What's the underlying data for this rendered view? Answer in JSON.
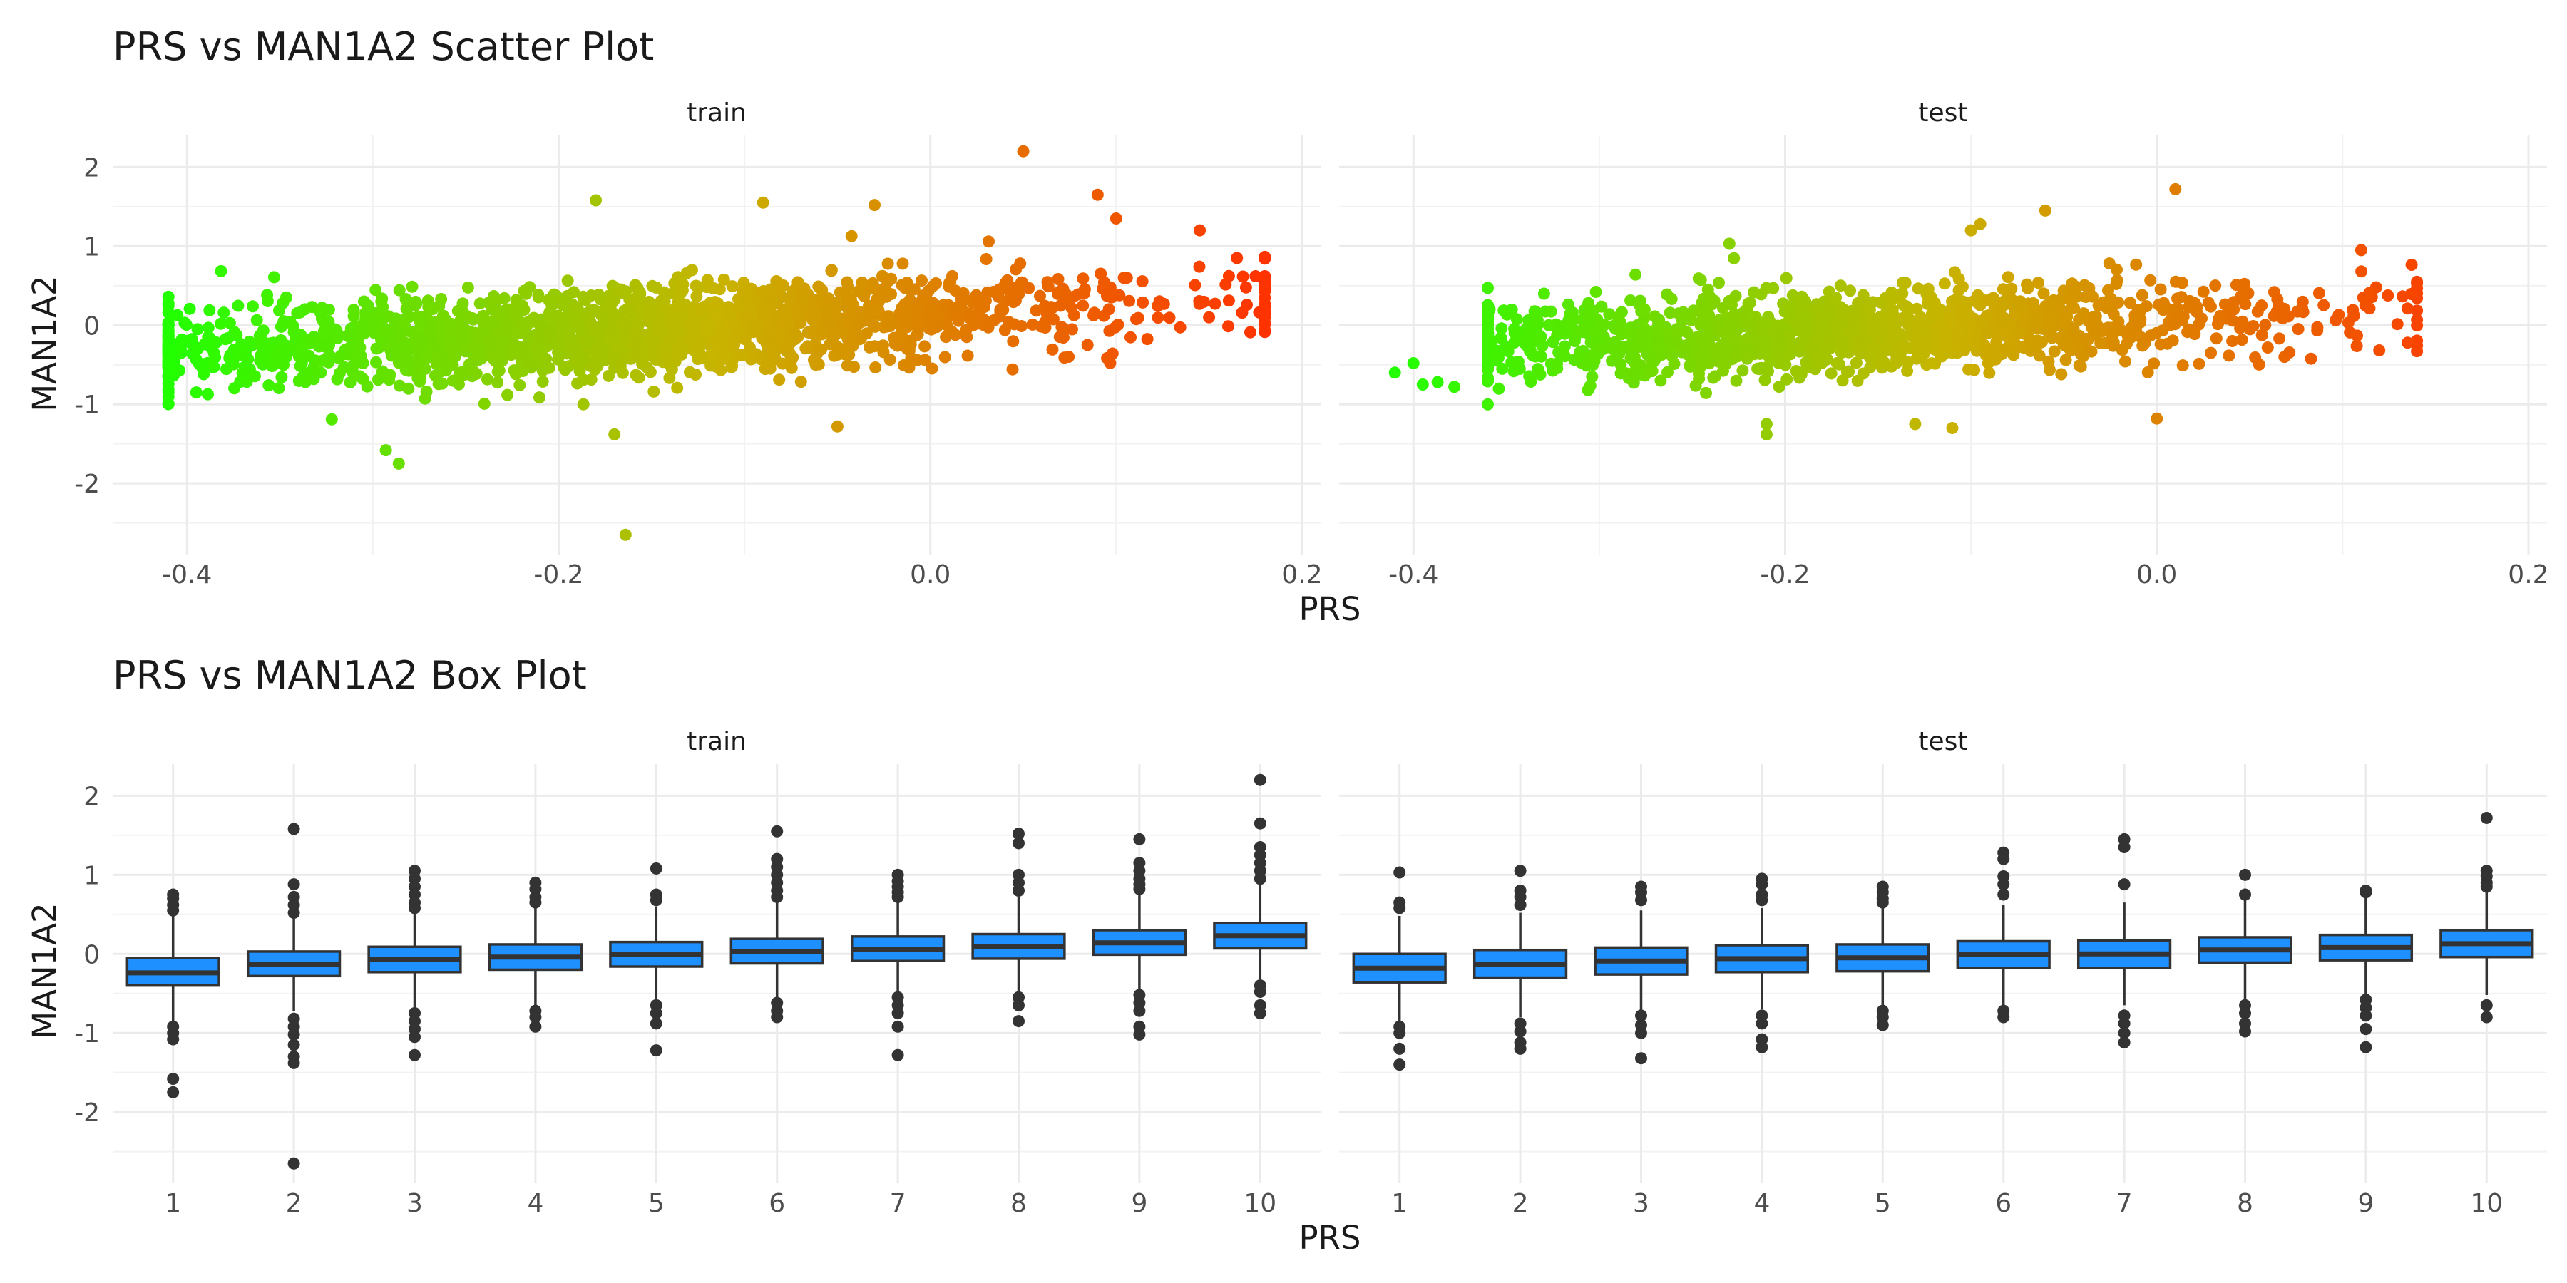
{
  "chart_data": [
    {
      "type": "scatter",
      "title": "PRS vs MAN1A2 Scatter Plot",
      "xlabel": "PRS",
      "ylabel": "MAN1A2",
      "facets": [
        "train",
        "test"
      ],
      "x_ticks": [
        "-0.4",
        "-0.2",
        "0.0",
        "0.2"
      ],
      "y_ticks": [
        "-2",
        "-1",
        "0",
        "1",
        "2"
      ],
      "xlim": [
        -0.44,
        0.21
      ],
      "ylim": [
        -2.9,
        2.4
      ],
      "grid": true,
      "color_scale": {
        "low": "#22ff00",
        "mid": "#c8b400",
        "high": "#ff3300"
      },
      "series": [
        {
          "facet": "train",
          "n_points": 1800,
          "x_range": [
            -0.41,
            0.18
          ],
          "fit": {
            "slope": 1.05,
            "intercept": 0.1,
            "sd": 0.28
          },
          "outliers": [
            {
              "x": 0.05,
              "y": 2.2
            },
            {
              "x": 0.09,
              "y": 1.65
            },
            {
              "x": 0.1,
              "y": 1.35
            },
            {
              "x": -0.09,
              "y": 1.55
            },
            {
              "x": -0.18,
              "y": 1.58
            },
            {
              "x": -0.03,
              "y": 1.52
            },
            {
              "x": -0.164,
              "y": -2.65
            },
            {
              "x": -0.293,
              "y": -1.58
            },
            {
              "x": -0.286,
              "y": -1.75
            },
            {
              "x": 0.145,
              "y": 1.2
            },
            {
              "x": 0.165,
              "y": 0.85
            },
            {
              "x": 0.175,
              "y": 0.62
            },
            {
              "x": 0.18,
              "y": 0.62
            },
            {
              "x": -0.05,
              "y": -1.28
            },
            {
              "x": -0.17,
              "y": -1.38
            },
            {
              "x": -0.41,
              "y": 0.03
            },
            {
              "x": -0.41,
              "y": -0.65
            },
            {
              "x": -0.4,
              "y": -0.2
            },
            {
              "x": -0.395,
              "y": -0.85
            },
            {
              "x": 0.15,
              "y": 0.1
            }
          ]
        },
        {
          "facet": "test",
          "n_points": 1400,
          "x_range": [
            -0.36,
            0.14
          ],
          "fit": {
            "slope": 0.95,
            "intercept": 0.08,
            "sd": 0.26
          },
          "outliers": [
            {
              "x": 0.01,
              "y": 1.72
            },
            {
              "x": -0.06,
              "y": 1.45
            },
            {
              "x": -0.095,
              "y": 1.28
            },
            {
              "x": -0.1,
              "y": 1.2
            },
            {
              "x": -0.23,
              "y": 1.03
            },
            {
              "x": -0.21,
              "y": -1.38
            },
            {
              "x": -0.21,
              "y": -1.25
            },
            {
              "x": -0.13,
              "y": -1.25
            },
            {
              "x": -0.11,
              "y": -1.3
            },
            {
              "x": 0.0,
              "y": -1.18
            },
            {
              "x": -0.41,
              "y": -0.6
            },
            {
              "x": -0.4,
              "y": -0.48
            },
            {
              "x": -0.395,
              "y": -0.75
            },
            {
              "x": -0.387,
              "y": -0.72
            },
            {
              "x": -0.378,
              "y": -0.78
            },
            {
              "x": 0.14,
              "y": 0.53
            },
            {
              "x": 0.135,
              "y": -0.22
            },
            {
              "x": 0.11,
              "y": 0.95
            }
          ]
        }
      ]
    },
    {
      "type": "box",
      "title": "PRS vs MAN1A2 Box Plot",
      "xlabel": "PRS",
      "ylabel": "MAN1A2",
      "facets": [
        "train",
        "test"
      ],
      "categories": [
        "1",
        "2",
        "3",
        "4",
        "5",
        "6",
        "7",
        "8",
        "9",
        "10"
      ],
      "y_ticks": [
        "-2",
        "-1",
        "0",
        "1",
        "2"
      ],
      "ylim": [
        -2.9,
        2.4
      ],
      "fill": "#1e90ff",
      "series": [
        {
          "facet": "train",
          "boxes": [
            {
              "q1": -0.4,
              "median": -0.24,
              "q3": -0.05,
              "low": -0.88,
              "high": 0.5,
              "outliers": [
                0.55,
                0.62,
                0.7,
                0.75,
                -0.92,
                -1.0,
                -1.08,
                -1.58,
                -1.75
              ]
            },
            {
              "q1": -0.28,
              "median": -0.13,
              "q3": 0.03,
              "low": -0.72,
              "high": 0.48,
              "outliers": [
                1.58,
                0.88,
                0.72,
                0.62,
                0.52,
                -0.82,
                -0.92,
                -1.02,
                -1.15,
                -1.3,
                -1.38,
                -2.65
              ]
            },
            {
              "q1": -0.23,
              "median": -0.07,
              "q3": 0.09,
              "low": -0.68,
              "high": 0.52,
              "outliers": [
                1.05,
                0.95,
                0.85,
                0.75,
                0.65,
                0.58,
                -0.75,
                -0.85,
                -0.95,
                -1.05,
                -1.28
              ]
            },
            {
              "q1": -0.2,
              "median": -0.04,
              "q3": 0.12,
              "low": -0.65,
              "high": 0.58,
              "outliers": [
                0.9,
                0.82,
                0.72,
                0.65,
                -0.72,
                -0.8,
                -0.92
              ]
            },
            {
              "q1": -0.16,
              "median": -0.01,
              "q3": 0.15,
              "low": -0.6,
              "high": 0.6,
              "outliers": [
                1.08,
                0.75,
                0.68,
                -0.65,
                -0.75,
                -0.88,
                -1.22
              ]
            },
            {
              "q1": -0.12,
              "median": 0.03,
              "q3": 0.19,
              "low": -0.58,
              "high": 0.65,
              "outliers": [
                1.55,
                1.2,
                1.1,
                1.0,
                0.9,
                0.8,
                0.72,
                -0.62,
                -0.72,
                -0.8
              ]
            },
            {
              "q1": -0.09,
              "median": 0.06,
              "q3": 0.22,
              "low": -0.55,
              "high": 0.68,
              "outliers": [
                1.0,
                0.92,
                0.85,
                0.78,
                0.72,
                -0.55,
                -0.65,
                -0.75,
                -0.92,
                -1.28
              ]
            },
            {
              "q1": -0.06,
              "median": 0.09,
              "q3": 0.25,
              "low": -0.52,
              "high": 0.72,
              "outliers": [
                1.52,
                1.4,
                1.0,
                0.9,
                0.8,
                -0.55,
                -0.65,
                -0.85
              ]
            },
            {
              "q1": -0.01,
              "median": 0.14,
              "q3": 0.3,
              "low": -0.48,
              "high": 0.78,
              "outliers": [
                1.45,
                1.15,
                1.05,
                0.95,
                0.88,
                0.82,
                -0.52,
                -0.62,
                -0.72,
                -0.92,
                -1.02
              ]
            },
            {
              "q1": 0.07,
              "median": 0.23,
              "q3": 0.39,
              "low": -0.35,
              "high": 0.88,
              "outliers": [
                2.2,
                1.65,
                1.35,
                1.25,
                1.15,
                1.05,
                0.95,
                -0.4,
                -0.48,
                -0.65,
                -0.75
              ]
            }
          ]
        },
        {
          "facet": "test",
          "boxes": [
            {
              "q1": -0.36,
              "median": -0.18,
              "q3": 0.0,
              "low": -0.85,
              "high": 0.48,
              "outliers": [
                1.03,
                0.65,
                0.58,
                -0.92,
                -1.0,
                -1.2,
                -1.4
              ]
            },
            {
              "q1": -0.3,
              "median": -0.13,
              "q3": 0.05,
              "low": -0.8,
              "high": 0.52,
              "outliers": [
                1.05,
                0.8,
                0.72,
                0.62,
                -0.88,
                -0.98,
                -1.12,
                -1.2
              ]
            },
            {
              "q1": -0.26,
              "median": -0.09,
              "q3": 0.08,
              "low": -0.72,
              "high": 0.55,
              "outliers": [
                0.85,
                0.78,
                0.68,
                -0.78,
                -0.9,
                -1.0,
                -1.32
              ]
            },
            {
              "q1": -0.23,
              "median": -0.06,
              "q3": 0.11,
              "low": -0.7,
              "high": 0.58,
              "outliers": [
                0.95,
                0.88,
                0.75,
                0.68,
                -0.78,
                -0.88,
                -1.08,
                -1.18
              ]
            },
            {
              "q1": -0.22,
              "median": -0.05,
              "q3": 0.12,
              "low": -0.68,
              "high": 0.6,
              "outliers": [
                0.85,
                0.78,
                0.7,
                0.65,
                -0.72,
                -0.8,
                -0.9
              ]
            },
            {
              "q1": -0.18,
              "median": -0.01,
              "q3": 0.16,
              "low": -0.65,
              "high": 0.62,
              "outliers": [
                1.28,
                1.2,
                0.98,
                0.88,
                0.75,
                -0.72,
                -0.8
              ]
            },
            {
              "q1": -0.18,
              "median": 0.0,
              "q3": 0.17,
              "low": -0.65,
              "high": 0.65,
              "outliers": [
                1.45,
                1.35,
                0.88,
                -0.78,
                -0.88,
                -1.0,
                -1.12
              ]
            },
            {
              "q1": -0.11,
              "median": 0.05,
              "q3": 0.21,
              "low": -0.58,
              "high": 0.68,
              "outliers": [
                1.0,
                0.75,
                -0.65,
                -0.75,
                -0.88,
                -0.98
              ]
            },
            {
              "q1": -0.08,
              "median": 0.08,
              "q3": 0.24,
              "low": -0.55,
              "high": 0.72,
              "outliers": [
                0.8,
                0.78,
                -0.58,
                -0.68,
                -0.78,
                -0.95,
                -1.18
              ]
            },
            {
              "q1": -0.04,
              "median": 0.13,
              "q3": 0.3,
              "low": -0.52,
              "high": 0.8,
              "outliers": [
                1.72,
                1.05,
                0.98,
                0.9,
                0.85,
                -0.65,
                -0.8
              ]
            }
          ]
        }
      ]
    }
  ]
}
